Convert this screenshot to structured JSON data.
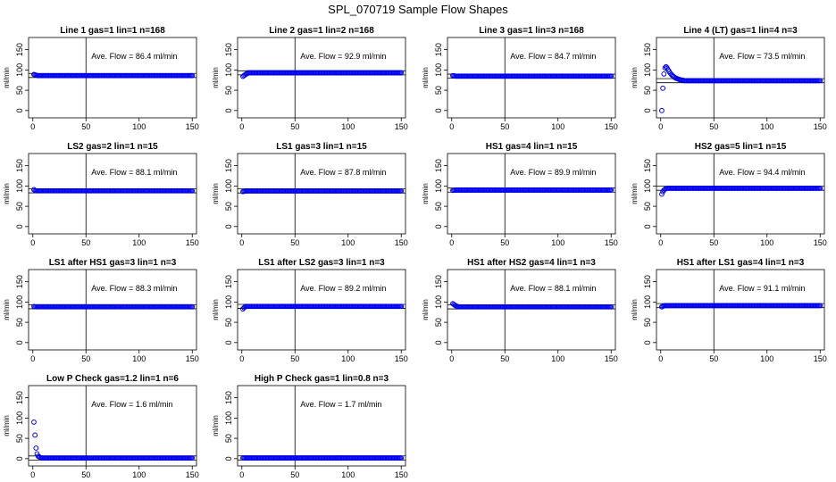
{
  "figure": {
    "title": "SPL_070719  Sample Flow Shapes"
  },
  "colors": {
    "points": "#0000ee",
    "axes": "#000000",
    "background": "#ffffff"
  },
  "chart_data": [
    {
      "type": "scatter",
      "title": "Line 1 gas=1 lin=1 n=168",
      "ylabel": "ml/min",
      "annotation": "Ave. Flow =  86.4  ml/min",
      "mean": 86.4,
      "xlim": [
        0,
        150
      ],
      "ylim": [
        0,
        150
      ],
      "xticks": [
        "0",
        "50",
        "100",
        "150"
      ],
      "yticks": [
        "0",
        "50",
        "100",
        "150"
      ],
      "vline_x": 50,
      "start": [
        89,
        88,
        87,
        86.5
      ],
      "steady": 86
    },
    {
      "type": "scatter",
      "title": "Line 2 gas=1 lin=2 n=168",
      "ylabel": "ml/min",
      "annotation": "Ave. Flow =  92.9  ml/min",
      "mean": 92.9,
      "xlim": [
        0,
        150
      ],
      "ylim": [
        0,
        150
      ],
      "xticks": [
        "0",
        "50",
        "100",
        "150"
      ],
      "yticks": [
        "0",
        "50",
        "100",
        "150"
      ],
      "vline_x": 50,
      "start": [
        84,
        86,
        88,
        90,
        91
      ],
      "steady": 93
    },
    {
      "type": "scatter",
      "title": "Line 3 gas=1 lin=3 n=168",
      "ylabel": "ml/min",
      "annotation": "Ave. Flow =  84.7  ml/min",
      "mean": 84.7,
      "xlim": [
        0,
        150
      ],
      "ylim": [
        0,
        150
      ],
      "xticks": [
        "0",
        "50",
        "100",
        "150"
      ],
      "yticks": [
        "0",
        "50",
        "100",
        "150"
      ],
      "vline_x": 50,
      "start": [
        86,
        85.5,
        85
      ],
      "steady": 84.7
    },
    {
      "type": "scatter",
      "title": "Line 4 (LT) gas=1 lin=4 n=3",
      "ylabel": "ml/min",
      "annotation": "Ave. Flow =  73.5  ml/min",
      "mean": 73.5,
      "xlim": [
        0,
        150
      ],
      "ylim": [
        0,
        150
      ],
      "xticks": [
        "0",
        "50",
        "100",
        "150"
      ],
      "yticks": [
        "0",
        "50",
        "100",
        "150"
      ],
      "vline_x": 50,
      "start": [
        0,
        55,
        90,
        105,
        108,
        105,
        100,
        96,
        92,
        89,
        86,
        84,
        82,
        80,
        79,
        78,
        77,
        76,
        75.5,
        75,
        74.5
      ],
      "steady": 73.5
    },
    {
      "type": "scatter",
      "title": "LS2 gas=2 lin=1 n=15",
      "ylabel": "ml/min",
      "annotation": "Ave. Flow =  88.1  ml/min",
      "mean": 88.1,
      "xlim": [
        0,
        150
      ],
      "ylim": [
        0,
        150
      ],
      "xticks": [
        "0",
        "50",
        "100",
        "150"
      ],
      "yticks": [
        "0",
        "50",
        "100",
        "150"
      ],
      "vline_x": 50,
      "start": [
        91,
        89
      ],
      "steady": 88.1
    },
    {
      "type": "scatter",
      "title": "LS1 gas=3 lin=1 n=15",
      "ylabel": "ml/min",
      "annotation": "Ave. Flow =  87.8  ml/min",
      "mean": 87.8,
      "xlim": [
        0,
        150
      ],
      "ylim": [
        0,
        150
      ],
      "xticks": [
        "0",
        "50",
        "100",
        "150"
      ],
      "yticks": [
        "0",
        "50",
        "100",
        "150"
      ],
      "vline_x": 50,
      "start": [
        86,
        87
      ],
      "steady": 87.8
    },
    {
      "type": "scatter",
      "title": "HS1 gas=4 lin=1 n=15",
      "ylabel": "ml/min",
      "annotation": "Ave. Flow =  89.9  ml/min",
      "mean": 89.9,
      "xlim": [
        0,
        150
      ],
      "ylim": [
        0,
        150
      ],
      "xticks": [
        "0",
        "50",
        "100",
        "150"
      ],
      "yticks": [
        "0",
        "50",
        "100",
        "150"
      ],
      "vline_x": 50,
      "start": [
        89,
        89.5
      ],
      "steady": 89.9
    },
    {
      "type": "scatter",
      "title": "HS2 gas=5 lin=1 n=15",
      "ylabel": "ml/min",
      "annotation": "Ave. Flow =  94.4  ml/min",
      "mean": 94.4,
      "xlim": [
        0,
        150
      ],
      "ylim": [
        0,
        150
      ],
      "xticks": [
        "0",
        "50",
        "100",
        "150"
      ],
      "yticks": [
        "0",
        "50",
        "100",
        "150"
      ],
      "vline_x": 50,
      "start": [
        80,
        86,
        90,
        92,
        93.5
      ],
      "steady": 94.4
    },
    {
      "type": "scatter",
      "title": "LS1 after HS1 gas=3 lin=1 n=3",
      "ylabel": "ml/min",
      "annotation": "Ave. Flow =  88.3  ml/min",
      "mean": 88.3,
      "xlim": [
        0,
        150
      ],
      "ylim": [
        0,
        150
      ],
      "xticks": [
        "0",
        "50",
        "100",
        "150"
      ],
      "yticks": [
        "0",
        "50",
        "100",
        "150"
      ],
      "vline_x": 50,
      "start": [
        89,
        88.5
      ],
      "steady": 88.3
    },
    {
      "type": "scatter",
      "title": "LS1 after LS2 gas=3 lin=1 n=3",
      "ylabel": "ml/min",
      "annotation": "Ave. Flow =  89.2  ml/min",
      "mean": 89.2,
      "xlim": [
        0,
        150
      ],
      "ylim": [
        0,
        150
      ],
      "xticks": [
        "0",
        "50",
        "100",
        "150"
      ],
      "yticks": [
        "0",
        "50",
        "100",
        "150"
      ],
      "vline_x": 50,
      "start": [
        83,
        86,
        88
      ],
      "steady": 89.2
    },
    {
      "type": "scatter",
      "title": "HS1 after HS2 gas=4 lin=1 n=3",
      "ylabel": "ml/min",
      "annotation": "Ave. Flow =  88.1  ml/min",
      "mean": 88.1,
      "xlim": [
        0,
        150
      ],
      "ylim": [
        0,
        150
      ],
      "xticks": [
        "0",
        "50",
        "100",
        "150"
      ],
      "yticks": [
        "0",
        "50",
        "100",
        "150"
      ],
      "vline_x": 50,
      "start": [
        96,
        94,
        92,
        90.5,
        89.5
      ],
      "steady": 88.1
    },
    {
      "type": "scatter",
      "title": "HS1 after LS1 gas=4 lin=1 n=3",
      "ylabel": "ml/min",
      "annotation": "Ave. Flow =  91.1  ml/min",
      "mean": 91.1,
      "xlim": [
        0,
        150
      ],
      "ylim": [
        0,
        150
      ],
      "xticks": [
        "0",
        "50",
        "100",
        "150"
      ],
      "yticks": [
        "0",
        "50",
        "100",
        "150"
      ],
      "vline_x": 50,
      "start": [
        88,
        89.5,
        90.5
      ],
      "steady": 91.1
    },
    {
      "type": "scatter",
      "title": "Low P Check gas=1.2 lin=1 n=6",
      "ylabel": "ml/min",
      "annotation": "Ave. Flow =  1.6  ml/min",
      "mean": 1.6,
      "xlim": [
        0,
        150
      ],
      "ylim": [
        0,
        150
      ],
      "xticks": [
        "0",
        "50",
        "100",
        "150"
      ],
      "yticks": [
        "0",
        "50",
        "100",
        "150"
      ],
      "vline_x": 50,
      "start": [
        90,
        58,
        26,
        12,
        6,
        4,
        3
      ],
      "steady": 1.6
    },
    {
      "type": "scatter",
      "title": "High P Check gas=1 lin=0.8 n=3",
      "ylabel": "ml/min",
      "annotation": "Ave. Flow =  1.7  ml/min",
      "mean": 1.7,
      "xlim": [
        0,
        150
      ],
      "ylim": [
        0,
        150
      ],
      "xticks": [
        "0",
        "50",
        "100",
        "150"
      ],
      "yticks": [
        "0",
        "50",
        "100",
        "150"
      ],
      "vline_x": 50,
      "start": [
        2,
        1.8
      ],
      "steady": 1.7
    }
  ]
}
